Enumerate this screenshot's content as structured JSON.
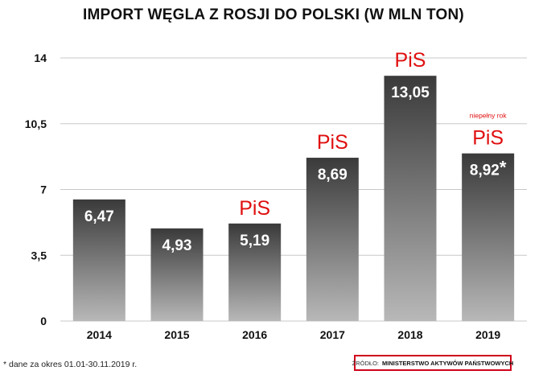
{
  "chart_data": {
    "type": "bar",
    "title": "IMPORT WĘGLA Z ROSJI DO POLSKI (W MLN TON)",
    "categories": [
      "2014",
      "2015",
      "2016",
      "2017",
      "2018",
      "2019"
    ],
    "values": [
      6.47,
      4.93,
      5.19,
      8.69,
      13.05,
      8.92
    ],
    "value_labels": [
      "6,47",
      "4,93",
      "5,19",
      "8,69",
      "13,05",
      "8,92"
    ],
    "value_suffixes": [
      "",
      "",
      "",
      "",
      "",
      "*"
    ],
    "annotations": [
      "",
      "",
      "PiS",
      "PiS",
      "PiS",
      "PiS"
    ],
    "extra_notes": [
      "",
      "",
      "",
      "",
      "",
      "niepełny rok"
    ],
    "y_ticks": [
      0,
      3.5,
      7,
      10.5,
      14
    ],
    "y_tick_labels": [
      "0",
      "3,5",
      "7",
      "10,5",
      "14"
    ],
    "ylim": [
      0,
      14
    ],
    "grid": true,
    "legend": "none",
    "colors": {
      "bar_top": "#3a3a3a",
      "bar_bottom": "#b8b8b8",
      "annotation": "#e01010",
      "grid": "#c8c8c8"
    }
  },
  "footnote": "* dane za okres 01.01-30.11.2019 r.",
  "source": {
    "label": "ŹRÓDŁO:",
    "value": "MINISTERSTWO AKTYWÓW PAŃSTWOWYCH"
  }
}
